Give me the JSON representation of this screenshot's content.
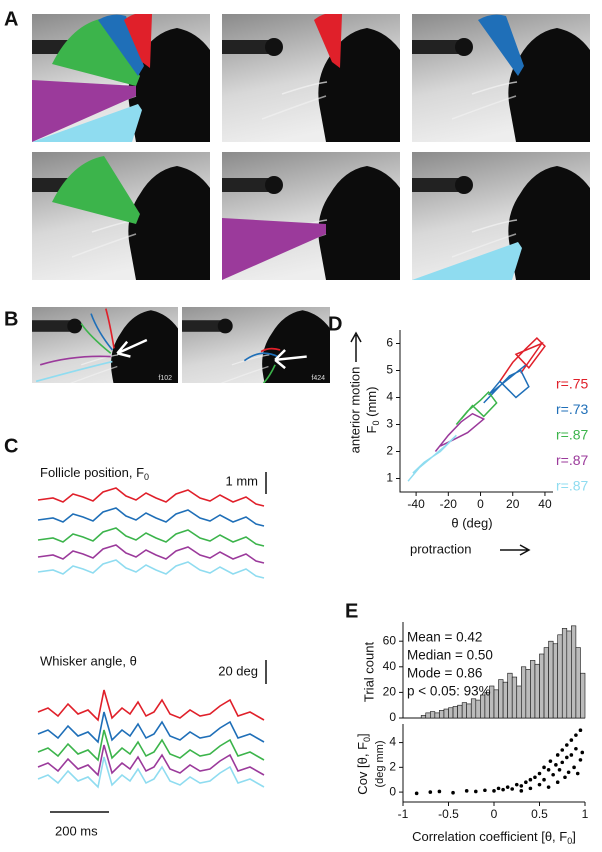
{
  "panel_labels": [
    "A",
    "B",
    "C",
    "D",
    "E"
  ],
  "panel_b": {
    "frames": [
      "f102",
      "f424"
    ]
  },
  "panel_c": {
    "follicle_title": "Follicle position, F",
    "follicle_sub": "0",
    "follicle_scale": "1 mm",
    "angle_title": "Whisker angle, θ",
    "angle_scale": "20 deg",
    "time_scale": "200 ms"
  },
  "chart_data": [
    {
      "type": "line",
      "ylabel_top": "anterior motion",
      "ylabel_symbol": "F",
      "ylabel_sub": "0",
      "ylabel_unit": " (mm)",
      "xlabel": "θ (deg)",
      "xnote": "protraction",
      "xlim": [
        -50,
        45
      ],
      "xticks": [
        -40,
        -20,
        0,
        20,
        40
      ],
      "ylim": [
        0.5,
        6.5
      ],
      "yticks": [
        1,
        2,
        3,
        4,
        5,
        6
      ],
      "series": [
        {
          "name": "r=.75",
          "color": "#e0202a",
          "x": [
            12,
            20,
            28,
            35,
            40,
            30,
            22,
            38,
            25
          ],
          "values": [
            4.6,
            5.3,
            5.8,
            6.2,
            5.9,
            5.1,
            5.6,
            6.0,
            4.9
          ]
        },
        {
          "name": "r=.73",
          "color": "#1f6fb8",
          "x": [
            2,
            10,
            18,
            25,
            30,
            22,
            12,
            5,
            28
          ],
          "values": [
            3.8,
            4.3,
            4.8,
            5.0,
            4.4,
            4.0,
            4.6,
            4.1,
            5.2
          ]
        },
        {
          "name": "r=.87",
          "color": "#3cb44b",
          "x": [
            -15,
            -8,
            0,
            5,
            10,
            2,
            -5,
            -12
          ],
          "values": [
            3.0,
            3.5,
            3.9,
            4.2,
            3.8,
            3.3,
            3.7,
            3.2
          ]
        },
        {
          "name": "r=.87",
          "color": "#9b3a9b",
          "x": [
            -28,
            -20,
            -12,
            -5,
            2,
            -8,
            -18,
            -25
          ],
          "values": [
            2.0,
            2.6,
            3.1,
            3.4,
            3.2,
            2.7,
            2.4,
            2.2
          ]
        },
        {
          "name": "r=.87",
          "color": "#8fdcf0",
          "x": [
            -45,
            -38,
            -30,
            -22,
            -15,
            -25,
            -35,
            -42
          ],
          "values": [
            0.9,
            1.4,
            1.8,
            2.2,
            2.6,
            2.0,
            1.6,
            1.2
          ]
        }
      ]
    },
    {
      "type": "histogram",
      "ylabel": "Trial count",
      "annotations": [
        "Mean = 0.42",
        "Median = 0.50",
        "Mode = 0.86",
        "p < 0.05: 93%"
      ],
      "color": "#bbbbbb",
      "bins": [
        -1,
        -0.95,
        -0.9,
        -0.85,
        -0.8,
        -0.75,
        -0.7,
        -0.65,
        -0.6,
        -0.55,
        -0.5,
        -0.45,
        -0.4,
        -0.35,
        -0.3,
        -0.25,
        -0.2,
        -0.15,
        -0.1,
        -0.05,
        0,
        0.05,
        0.1,
        0.15,
        0.2,
        0.25,
        0.3,
        0.35,
        0.4,
        0.45,
        0.5,
        0.55,
        0.6,
        0.65,
        0.7,
        0.75,
        0.8,
        0.85,
        0.9,
        0.95,
        1
      ],
      "values": [
        0,
        0,
        0,
        0,
        2,
        4,
        5,
        4,
        6,
        7,
        8,
        9,
        10,
        12,
        11,
        15,
        14,
        18,
        20,
        25,
        22,
        30,
        28,
        35,
        32,
        25,
        40,
        38,
        45,
        42,
        50,
        55,
        60,
        58,
        65,
        70,
        68,
        72,
        55,
        35
      ],
      "xlim": [
        -1,
        1
      ],
      "ylim": [
        0,
        75
      ],
      "yticks": [
        0,
        20,
        40,
        60
      ]
    },
    {
      "type": "scatter",
      "ylabel": "Cov [θ, F",
      "ylabel_sub": "0",
      "ylabel_end": "]",
      "ylabel_unit": "(deg mm)",
      "xlabel": "Correlation coefficient [θ, F",
      "xlabel_sub": "0",
      "xlabel_end": "]",
      "color": "#000000",
      "xlim": [
        -1,
        1
      ],
      "xticks": [
        -1,
        -0.5,
        0,
        0.5,
        1
      ],
      "ylim": [
        -0.8,
        5.5
      ],
      "yticks": [
        0,
        2,
        4
      ],
      "x": [
        -0.85,
        -0.7,
        -0.6,
        -0.45,
        -0.3,
        -0.2,
        -0.1,
        0,
        0.05,
        0.1,
        0.15,
        0.2,
        0.25,
        0.3,
        0.3,
        0.35,
        0.4,
        0.4,
        0.45,
        0.5,
        0.5,
        0.55,
        0.55,
        0.6,
        0.6,
        0.62,
        0.65,
        0.68,
        0.7,
        0.7,
        0.72,
        0.75,
        0.75,
        0.78,
        0.8,
        0.8,
        0.82,
        0.85,
        0.85,
        0.88,
        0.9,
        0.9,
        0.92,
        0.95,
        0.95,
        0.97
      ],
      "values": [
        -0.1,
        0,
        0.05,
        -0.05,
        0.1,
        0.05,
        0.15,
        0.1,
        0.3,
        0.2,
        0.4,
        0.25,
        0.6,
        0.5,
        0.1,
        0.8,
        1.0,
        0.3,
        1.2,
        1.5,
        0.6,
        1.0,
        2.0,
        1.8,
        0.4,
        2.5,
        1.4,
        2.2,
        3.0,
        0.8,
        1.8,
        3.4,
        2.4,
        1.2,
        3.8,
        2.8,
        1.6,
        4.2,
        3.0,
        2.0,
        4.6,
        3.5,
        1.5,
        5.0,
        2.6,
        3.2
      ]
    }
  ]
}
